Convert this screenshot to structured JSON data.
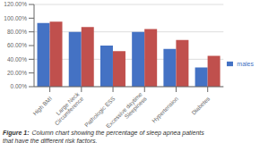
{
  "chart_data": {
    "type": "bar",
    "categories": [
      "High BMI",
      "Large Neck\nCircumference",
      "Pathologic ESS",
      "Excessive daytime\nSleepiness",
      "Hypertension",
      "Diabetes"
    ],
    "series": [
      {
        "name": "males",
        "color": "#4472c4",
        "values": [
          93,
          80,
          60,
          80,
          55,
          28
        ]
      },
      {
        "color": "#c0504d",
        "values": [
          95,
          87,
          52,
          84,
          68,
          45
        ]
      }
    ],
    "ylim": [
      0,
      120
    ],
    "yticks": [
      {
        "value": 0,
        "label": "0.00%"
      },
      {
        "value": 20,
        "label": "20.00%"
      },
      {
        "value": 40,
        "label": "40.00%"
      },
      {
        "value": 60,
        "label": "60.00%"
      },
      {
        "value": 80,
        "label": "80.00%"
      },
      {
        "value": 100,
        "label": "100.00%"
      },
      {
        "value": 120,
        "label": "120.00%"
      }
    ],
    "grid": true,
    "legend": "right",
    "annotations": [
      "Figure 1:",
      "Column chart showing the percentage of sleep apnea patients\nthat have the different risk factors."
    ]
  }
}
